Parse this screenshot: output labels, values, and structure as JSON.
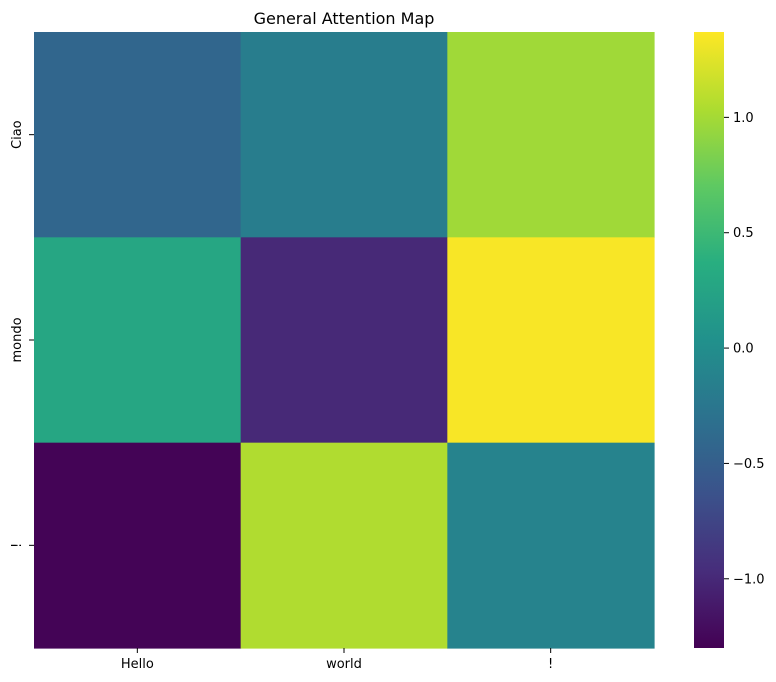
{
  "chart_data": {
    "type": "heatmap",
    "title": "General Attention Map",
    "xlabel": "",
    "ylabel": "",
    "x_categories": [
      "Hello",
      "world",
      "!"
    ],
    "y_categories": [
      "Ciao",
      "mondo",
      "!"
    ],
    "values": [
      [
        -0.42,
        -0.18,
        0.98
      ],
      [
        0.28,
        -1.0,
        1.35
      ],
      [
        -1.28,
        1.05,
        -0.12
      ]
    ],
    "colormap": "viridis",
    "colorbar": {
      "min": -1.3,
      "max": 1.37,
      "ticks": [
        1.0,
        0.5,
        0.0,
        -0.5,
        -1.0
      ],
      "tick_labels": [
        "1.0",
        "0.5",
        "0.0",
        "−0.5",
        "−1.0"
      ]
    },
    "grid": false,
    "legend": "colorbar-right"
  }
}
